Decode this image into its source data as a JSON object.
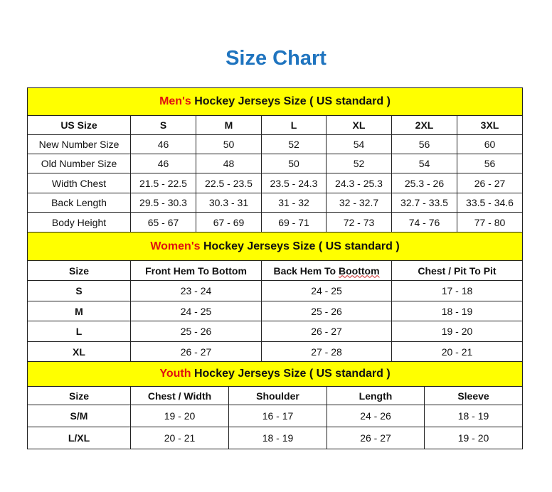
{
  "title": "Size Chart",
  "colors": {
    "title": "#1f74bf",
    "section_bg": "#ffff00",
    "accent": "#e01010"
  },
  "men": {
    "accent": "Men's",
    "heading": " Hockey Jerseys Size ( US standard )",
    "columns": [
      "US Size",
      "S",
      "M",
      "L",
      "XL",
      "2XL",
      "3XL"
    ],
    "rows": [
      [
        "New Number Size",
        "46",
        "50",
        "52",
        "54",
        "56",
        "60"
      ],
      [
        "Old Number Size",
        "46",
        "48",
        "50",
        "52",
        "54",
        "56"
      ],
      [
        "Width Chest",
        "21.5 - 22.5",
        "22.5 - 23.5",
        "23.5 - 24.3",
        "24.3 - 25.3",
        "25.3 - 26",
        "26 - 27"
      ],
      [
        "Back Length",
        "29.5 - 30.3",
        "30.3 - 31",
        "31 - 32",
        "32 - 32.7",
        "32.7 - 33.5",
        "33.5 - 34.6"
      ],
      [
        "Body Height",
        "65 - 67",
        "67 - 69",
        "69 - 71",
        "72 - 73",
        "74 - 76",
        "77 - 80"
      ]
    ]
  },
  "women": {
    "accent": "Women's",
    "heading": " Hockey Jerseys Size ( US standard )",
    "columns": [
      "Size",
      "Front Hem To Bottom",
      "Back Hem To ",
      "Chest / Pit To Pit"
    ],
    "misspelled": "Boottom",
    "rows": [
      [
        "S",
        "23 - 24",
        "24 - 25",
        "17 - 18"
      ],
      [
        "M",
        "24 - 25",
        "25 - 26",
        "18 - 19"
      ],
      [
        "L",
        "25 - 26",
        "26 - 27",
        "19 - 20"
      ],
      [
        "XL",
        "26 - 27",
        "27 - 28",
        "20 - 21"
      ]
    ]
  },
  "youth": {
    "accent": "Youth",
    "heading": " Hockey Jerseys Size ( US standard )",
    "columns": [
      "Size",
      "Chest / Width",
      "Shoulder",
      "Length",
      "Sleeve"
    ],
    "rows": [
      [
        "S/M",
        "19 - 20",
        "16 - 17",
        "24 - 26",
        "18 - 19"
      ],
      [
        "L/XL",
        "20 - 21",
        "18 - 19",
        "26 - 27",
        "19 - 20"
      ]
    ]
  }
}
